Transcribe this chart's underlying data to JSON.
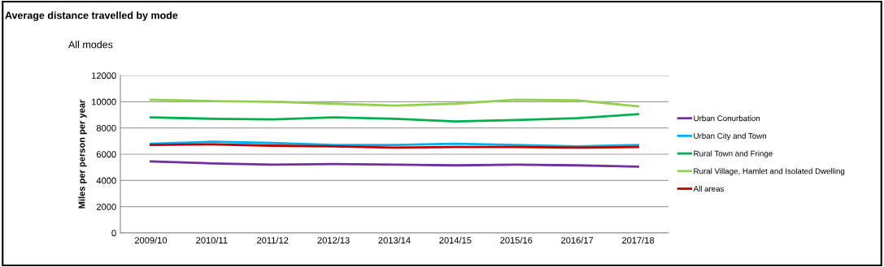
{
  "chart_data": {
    "type": "line",
    "title": "Average distance travelled by mode",
    "subtitle": "All modes",
    "ylabel": "Miles per person per year",
    "categories": [
      "2009/10",
      "2010/11",
      "2011/12",
      "2012/13",
      "2013/14",
      "2014/15",
      "2015/16",
      "2016/17",
      "2017/18"
    ],
    "series": [
      {
        "name": "Urban Conurbation",
        "color": "#7030a0",
        "values": [
          5450,
          5300,
          5200,
          5250,
          5200,
          5150,
          5200,
          5150,
          5050
        ]
      },
      {
        "name": "Urban City and Town",
        "color": "#00b0f0",
        "values": [
          6800,
          6950,
          6850,
          6700,
          6700,
          6800,
          6700,
          6600,
          6700
        ]
      },
      {
        "name": "Rural Town and Fringe",
        "color": "#00b050",
        "values": [
          8800,
          8700,
          8650,
          8800,
          8700,
          8500,
          8600,
          8750,
          9050
        ]
      },
      {
        "name": "Rural Village, Hamlet and Isolated Dwelling",
        "color": "#92d050",
        "values": [
          10150,
          10050,
          10000,
          9850,
          9700,
          9850,
          10150,
          10100,
          9650
        ]
      },
      {
        "name": "All areas",
        "color": "#c00000",
        "values": [
          6700,
          6750,
          6650,
          6600,
          6500,
          6550,
          6550,
          6500,
          6550
        ]
      }
    ],
    "ylim": [
      0,
      12000
    ],
    "yticks": [
      0,
      2000,
      4000,
      6000,
      8000,
      10000,
      12000
    ],
    "grid": "y",
    "legend": "right",
    "marker": "none",
    "line_style": "solid"
  }
}
